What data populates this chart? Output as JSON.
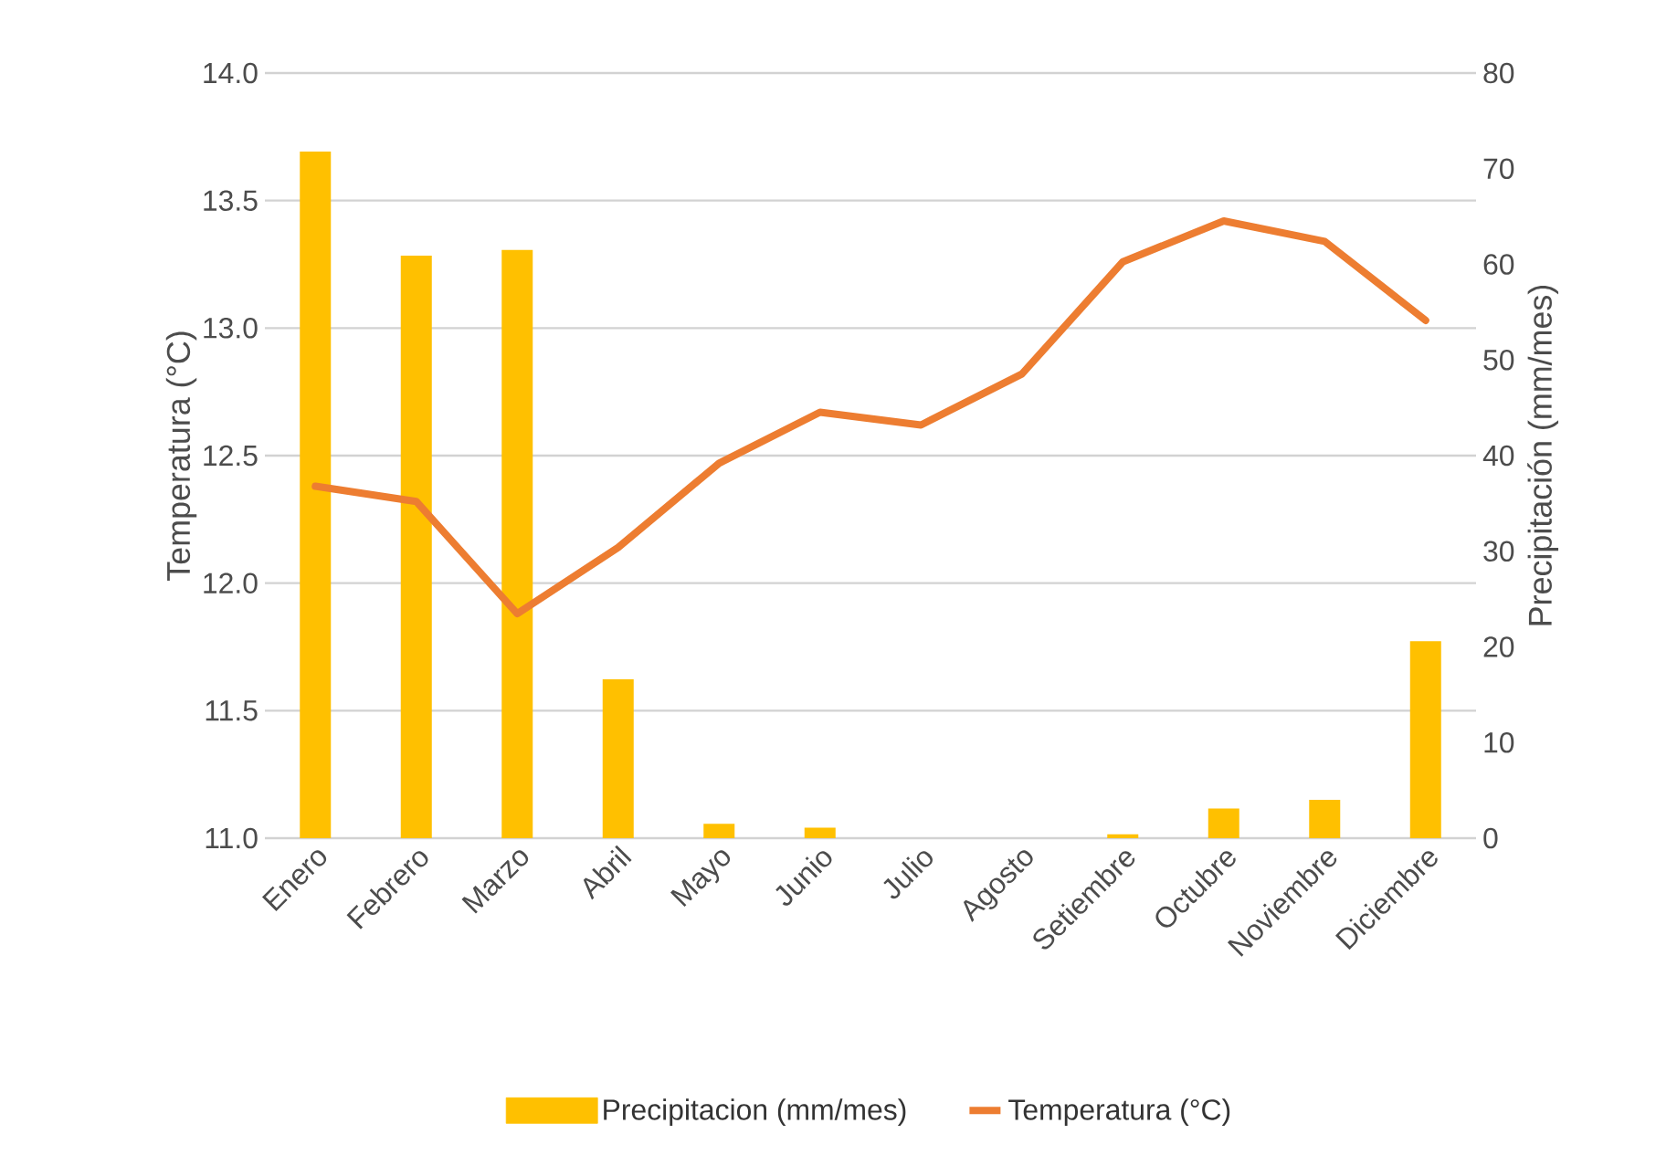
{
  "chart_data": {
    "type": "bar",
    "categories": [
      "Enero",
      "Febrero",
      "Marzo",
      "Abril",
      "Mayo",
      "Junio",
      "Julio",
      "Agosto",
      "Setiembre",
      "Octubre",
      "Noviembre",
      "Diciembre"
    ],
    "series": [
      {
        "name": "Precipitacion (mm/mes)",
        "axis": "y2",
        "color": "#ffc000",
        "values": [
          71.8,
          60.9,
          61.5,
          16.6,
          1.5,
          1.1,
          0,
          0,
          0.4,
          3.1,
          4.0,
          20.6
        ]
      },
      {
        "name": "Temperatura (°C)",
        "type": "line",
        "color": "#ed7d31",
        "values": [
          12.38,
          12.32,
          11.88,
          12.14,
          12.47,
          12.67,
          12.62,
          12.82,
          13.26,
          13.42,
          13.34,
          13.03
        ]
      }
    ],
    "ylabel": "Temperatura (°C)",
    "y2label": "Precipitación (mm/mes)",
    "ylim": [
      11,
      14
    ],
    "yticks": [
      {
        "value": 11,
        "label": "11.0"
      },
      {
        "value": 11.5,
        "label": "11.5"
      },
      {
        "value": 12,
        "label": "12.0"
      },
      {
        "value": 12.5,
        "label": "12.5"
      },
      {
        "value": 13,
        "label": "13.0"
      },
      {
        "value": 13.5,
        "label": "13.5"
      },
      {
        "value": 14,
        "label": "14.0"
      }
    ],
    "y2lim": [
      0,
      80
    ],
    "y2ticks": [
      0,
      10,
      20,
      30,
      40,
      50,
      60,
      70,
      80
    ],
    "grid": "y",
    "legend": "bottom"
  }
}
